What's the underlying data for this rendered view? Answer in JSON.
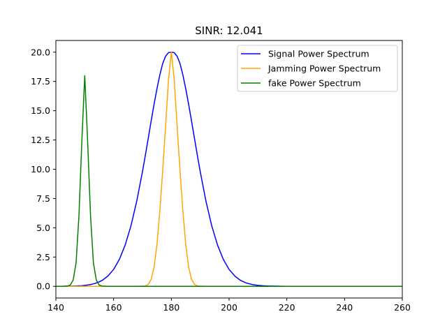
{
  "chart_data": {
    "type": "line",
    "title": "SINR: 12.041",
    "xlabel": "",
    "ylabel": "",
    "xlim": [
      140,
      260
    ],
    "ylim": [
      -1,
      21
    ],
    "x_ticks": [
      140,
      160,
      180,
      200,
      220,
      240,
      260
    ],
    "y_ticks": [
      0.0,
      2.5,
      5.0,
      7.5,
      10.0,
      12.5,
      15.0,
      17.5,
      20.0
    ],
    "x_tick_labels": [
      "140",
      "160",
      "180",
      "200",
      "220",
      "240",
      "260"
    ],
    "y_tick_labels": [
      "0.0",
      "2.5",
      "5.0",
      "7.5",
      "10.0",
      "12.5",
      "15.0",
      "17.5",
      "20.0"
    ],
    "grid": false,
    "legend_position": "top-right",
    "x": [
      140,
      142,
      144,
      145,
      146,
      147,
      148,
      149,
      150,
      151,
      152,
      153,
      154,
      155,
      156,
      158,
      160,
      162,
      164,
      166,
      168,
      170,
      171,
      172,
      173,
      174,
      175,
      176,
      177,
      178,
      179,
      180,
      181,
      182,
      183,
      184,
      185,
      186,
      187,
      188,
      189,
      190,
      192,
      194,
      196,
      198,
      200,
      202,
      204,
      206,
      208,
      210,
      212,
      214,
      216,
      220,
      230,
      240,
      250,
      260
    ],
    "series": [
      {
        "name": "Signal Power Spectrum",
        "color": "#0000ff",
        "values": [
          0.0,
          0.0,
          0.01,
          0.01,
          0.02,
          0.03,
          0.04,
          0.05,
          0.08,
          0.11,
          0.15,
          0.21,
          0.28,
          0.38,
          0.5,
          0.87,
          1.44,
          2.3,
          3.52,
          5.16,
          7.26,
          9.8,
          11.2,
          12.65,
          14.11,
          15.53,
          16.86,
          18.05,
          19.03,
          19.65,
          19.96,
          20.0,
          19.96,
          19.65,
          19.03,
          18.05,
          16.86,
          15.53,
          14.11,
          12.65,
          11.2,
          9.8,
          7.26,
          5.16,
          3.52,
          2.3,
          1.44,
          0.87,
          0.5,
          0.28,
          0.15,
          0.08,
          0.04,
          0.02,
          0.01,
          0.0,
          0.0,
          0.0,
          0.0,
          0.0
        ]
      },
      {
        "name": "Jamming Power Spectrum",
        "color": "#ffa500",
        "values": [
          0,
          0,
          0,
          0,
          0,
          0,
          0,
          0,
          0,
          0,
          0,
          0,
          0,
          0,
          0,
          0,
          0,
          0,
          0,
          0,
          0,
          0.01,
          0.04,
          0.17,
          0.59,
          1.61,
          3.54,
          6.42,
          9.87,
          13.65,
          17.65,
          20.0,
          17.65,
          13.65,
          9.87,
          6.42,
          3.54,
          1.61,
          0.59,
          0.17,
          0.04,
          0.01,
          0,
          0,
          0,
          0,
          0,
          0,
          0,
          0,
          0,
          0,
          0,
          0,
          0,
          0,
          0,
          0,
          0,
          0
        ]
      },
      {
        "name": "fake Power Spectrum",
        "color": "#008000",
        "values": [
          0.0,
          0.0,
          0.02,
          0.11,
          0.54,
          2.0,
          6.06,
          12.4,
          18.0,
          12.4,
          6.06,
          2.0,
          0.54,
          0.11,
          0.02,
          0.0,
          0.0,
          0.0,
          0.0,
          0.0,
          0.0,
          0.0,
          0.0,
          0.0,
          0.0,
          0.0,
          0.0,
          0.0,
          0.0,
          0.0,
          0.0,
          0.0,
          0.0,
          0.0,
          0.0,
          0.0,
          0.0,
          0.0,
          0.0,
          0.0,
          0.0,
          0.0,
          0.0,
          0.0,
          0.0,
          0.0,
          0.0,
          0.0,
          0.0,
          0.0,
          0.0,
          0.0,
          0.0,
          0.0,
          0.0,
          0.0,
          0.0,
          0.0,
          0.0,
          0.0
        ]
      }
    ]
  }
}
